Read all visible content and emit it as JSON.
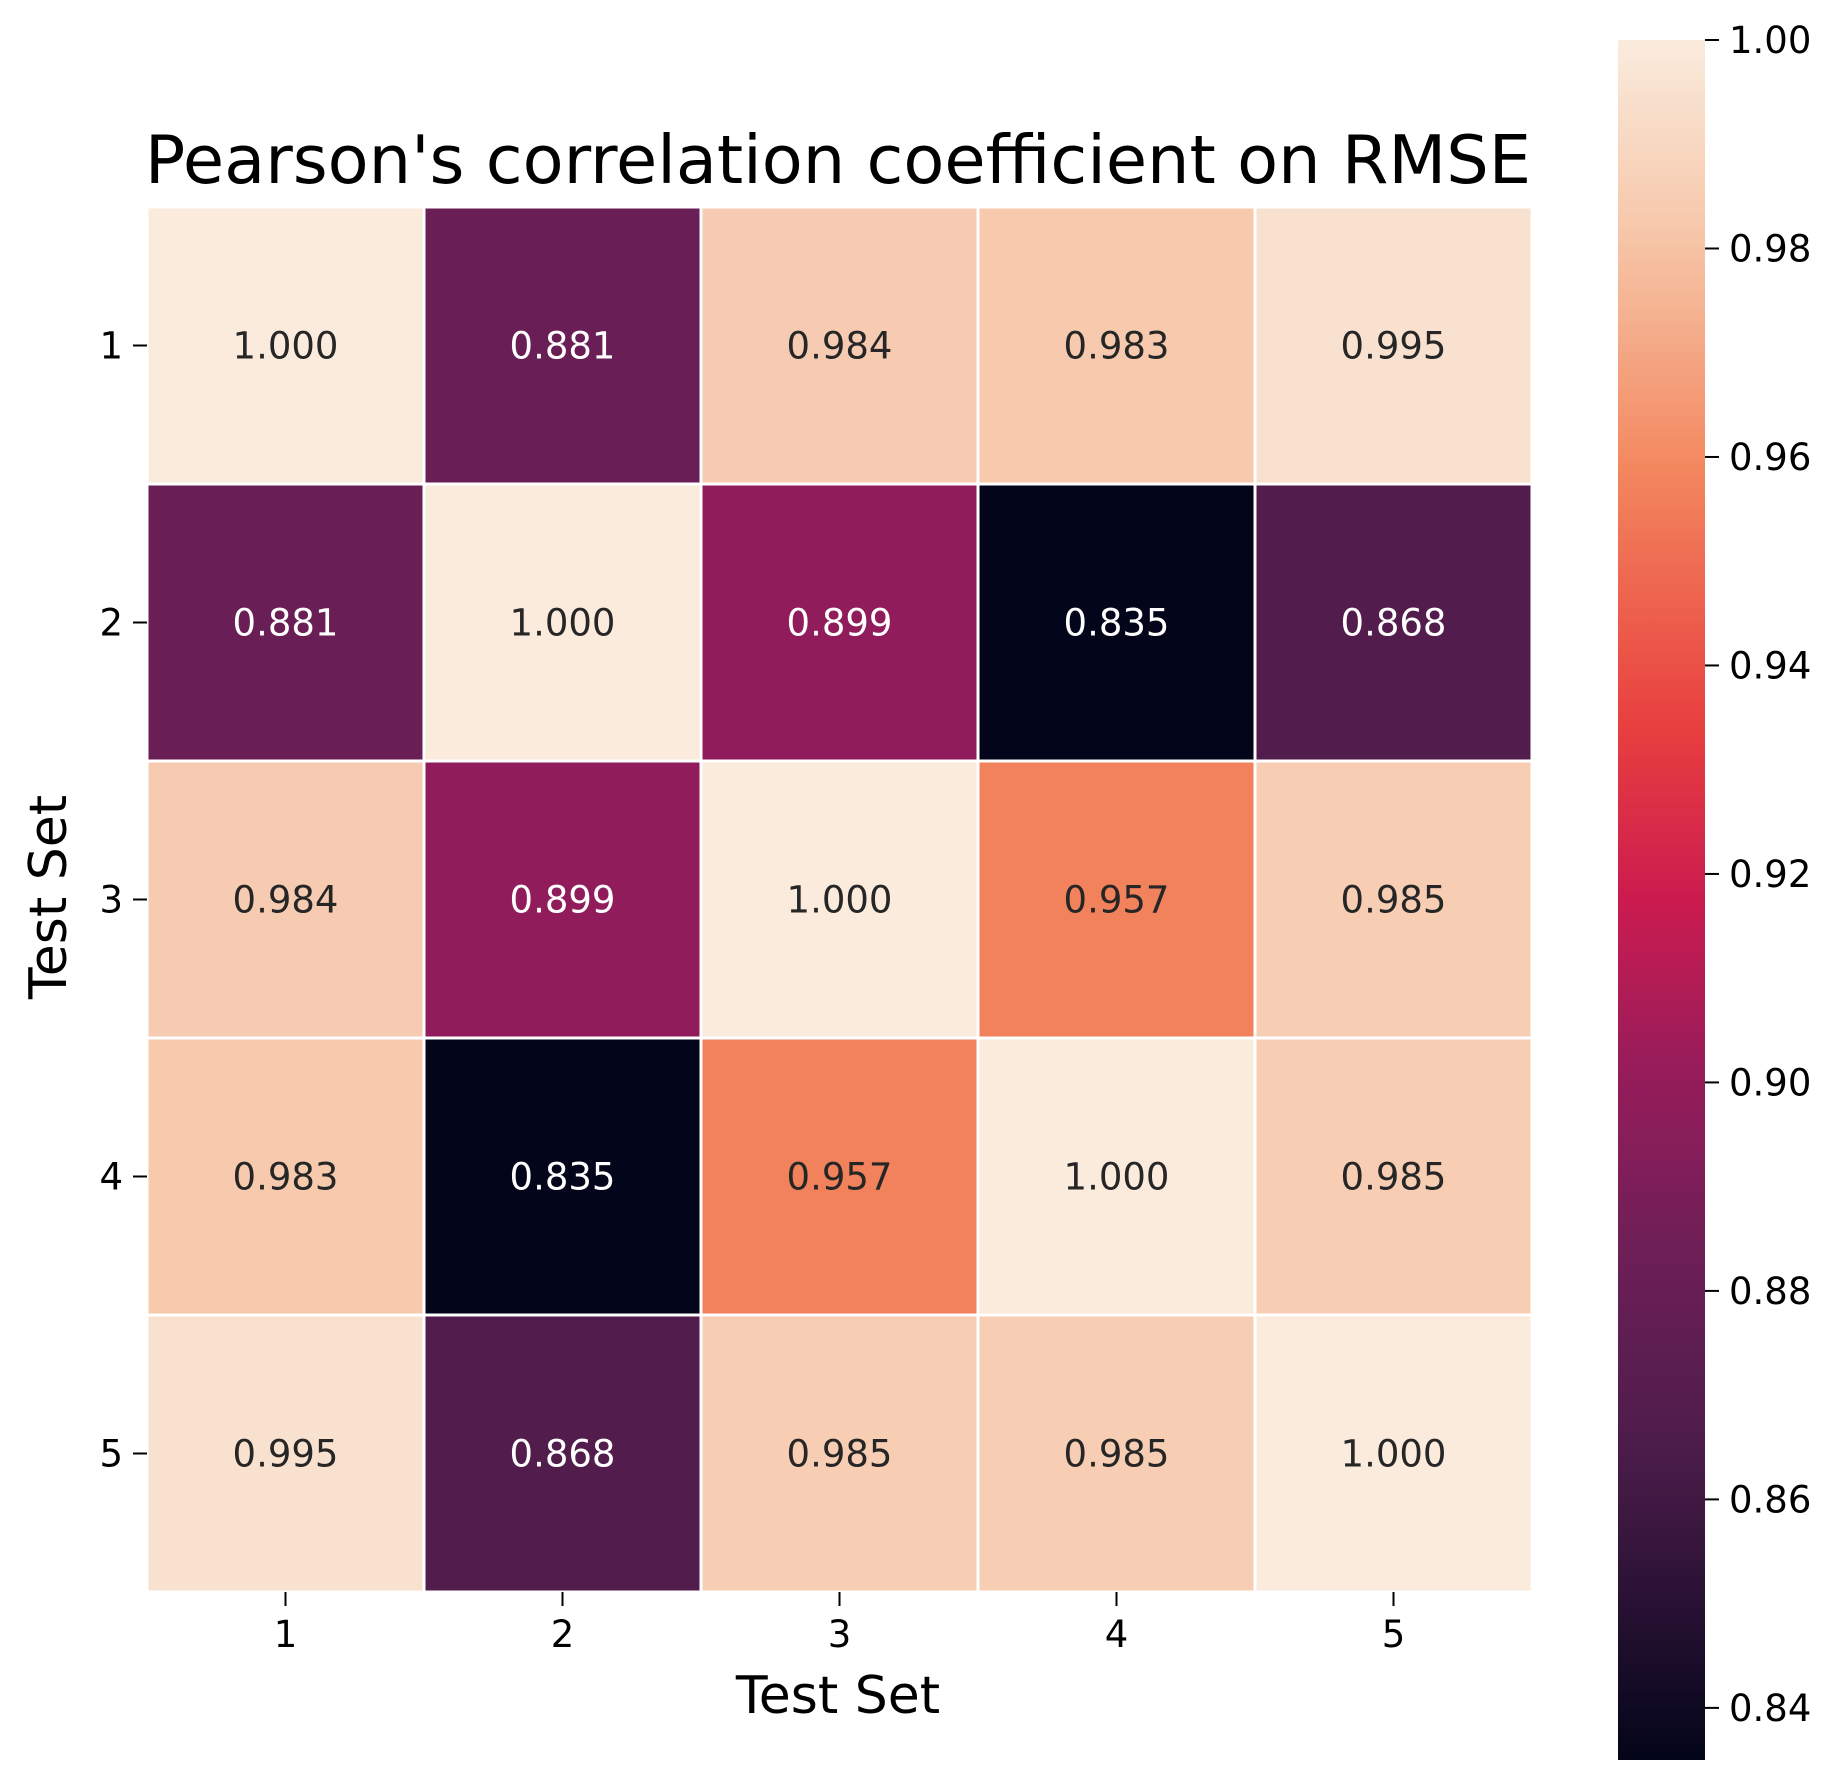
{
  "chart_data": {
    "type": "heatmap",
    "title": "Pearson's correlation coefficient on RMSE",
    "xlabel": "Test Set",
    "ylabel": "Test Set",
    "x_categories": [
      "1",
      "2",
      "3",
      "4",
      "5"
    ],
    "y_categories": [
      "1",
      "2",
      "3",
      "4",
      "5"
    ],
    "values": [
      [
        1.0,
        0.881,
        0.984,
        0.983,
        0.995
      ],
      [
        0.881,
        1.0,
        0.899,
        0.835,
        0.868
      ],
      [
        0.984,
        0.899,
        1.0,
        0.957,
        0.985
      ],
      [
        0.983,
        0.835,
        0.957,
        1.0,
        0.985
      ],
      [
        0.995,
        0.868,
        0.985,
        0.985,
        1.0
      ]
    ],
    "cell_labels": [
      [
        "1.000",
        "0.881",
        "0.984",
        "0.983",
        "0.995"
      ],
      [
        "0.881",
        "1.000",
        "0.899",
        "0.835",
        "0.868"
      ],
      [
        "0.984",
        "0.899",
        "1.000",
        "0.957",
        "0.985"
      ],
      [
        "0.983",
        "0.835",
        "0.957",
        "1.000",
        "0.985"
      ],
      [
        "0.995",
        "0.868",
        "0.985",
        "0.985",
        "1.000"
      ]
    ],
    "colorbar": {
      "range": [
        0.835,
        1.0
      ],
      "tick_values": [
        0.84,
        0.86,
        0.88,
        0.9,
        0.92,
        0.94,
        0.96,
        0.98,
        1.0
      ],
      "tick_labels": [
        "0.84",
        "0.86",
        "0.88",
        "0.90",
        "0.92",
        "0.94",
        "0.96",
        "0.98",
        "1.00"
      ]
    },
    "colormap": "rocket",
    "grid": false,
    "legend": "colorbar-right"
  }
}
